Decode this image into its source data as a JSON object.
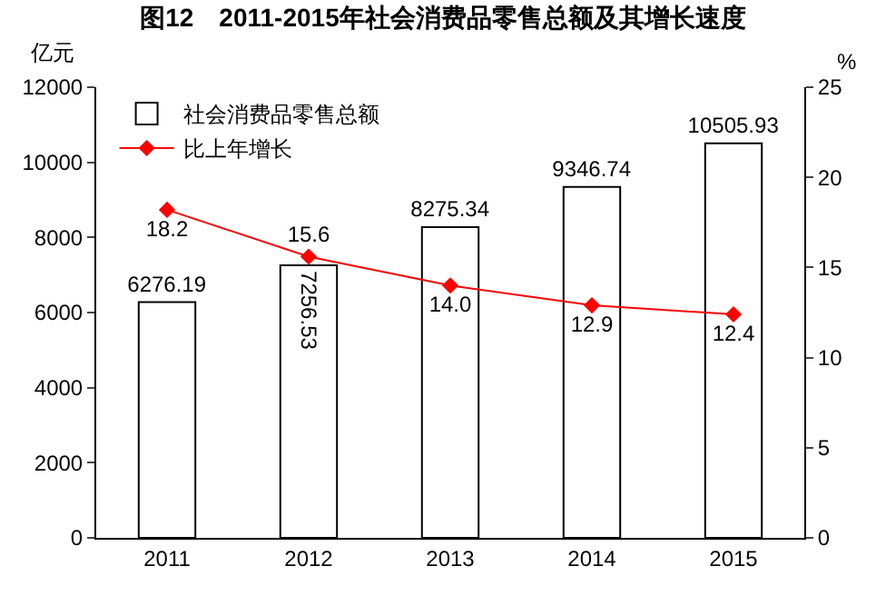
{
  "chart_data": {
    "type": "bar",
    "title": "图12　2011-2015年社会消费品零售总额及其增长速度",
    "ylabel": "亿元",
    "y2label": "%",
    "categories": [
      "2011",
      "2012",
      "2013",
      "2014",
      "2015"
    ],
    "series": [
      {
        "name": "社会消费品零售总额",
        "color": "#ffffff",
        "values": [
          6276.19,
          7256.53,
          8275.34,
          9346.74,
          10505.93
        ]
      },
      {
        "name": "比上年增长",
        "type": "line",
        "axis": "y2",
        "color": "#ff0000",
        "marker": "diamond",
        "values": [
          18.2,
          15.6,
          14.0,
          12.9,
          12.4
        ],
        "value_labels": [
          "18.2",
          "15.6",
          "14.0",
          "12.9",
          "12.4"
        ]
      }
    ],
    "data_labels": true,
    "ylim": [
      0,
      12000
    ],
    "yticks": [
      0,
      2000,
      4000,
      6000,
      8000,
      10000,
      12000
    ],
    "y2lim": [
      0,
      25
    ],
    "y2ticks": [
      0,
      5,
      10,
      15,
      20,
      25
    ],
    "grid": false,
    "legend": "top left"
  }
}
